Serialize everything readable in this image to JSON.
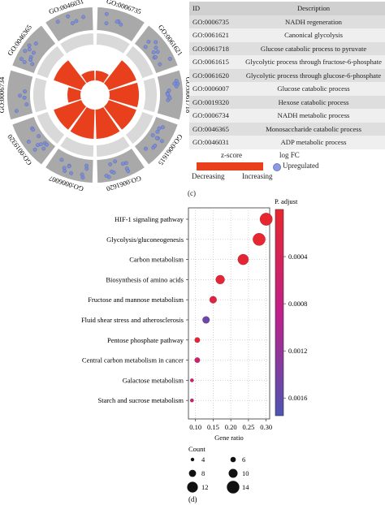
{
  "panel_c": {
    "label": "(c)",
    "table": {
      "headers": [
        "ID",
        "Description"
      ],
      "rows": [
        [
          "GO:0006735",
          "NADH regeneration"
        ],
        [
          "GO:0061621",
          "Canonical glycolysis"
        ],
        [
          "GO:0061718",
          "Glucose catabolic process to pyruvate"
        ],
        [
          "GO:0061615",
          "Glycolytic process through fructose-6-phosphate"
        ],
        [
          "GO:0061620",
          "Glycolytic process through glucose-6-phosphate"
        ],
        [
          "GO:0006007",
          "Glucose catabolic process"
        ],
        [
          "GO:0019320",
          "Hexose catabolic process"
        ],
        [
          "GO:0006734",
          "NADH metabolic process"
        ],
        [
          "GO:0046365",
          "Monosaccharide catabolic process"
        ],
        [
          "GO:0046031",
          "ADP metabolic process"
        ]
      ]
    },
    "legend": {
      "zscore_title": "z-score",
      "decreasing": "Decreasing",
      "increasing": "Increasing",
      "logfc_title": "log FC",
      "upregulated": "Upregulated"
    }
  },
  "chart_data": [
    {
      "type": "circular",
      "terms": [
        "GO:0006735",
        "GO:0061621",
        "GO:0061718",
        "GO:0061615",
        "GO:0061620",
        "GO:0006007",
        "GO:0019320",
        "GO:0006734",
        "GO:0046365",
        "GO:0046031"
      ],
      "zscore_bar_relative_height": [
        0.3,
        0.9,
        0.9,
        0.9,
        0.9,
        0.9,
        0.9,
        0.4,
        0.9,
        0.3
      ],
      "genes_per_term": [
        5,
        10,
        10,
        10,
        10,
        10,
        10,
        5,
        10,
        5
      ],
      "colors": {
        "bar": "#e8401c",
        "outer_ring": "#a9a9a9",
        "inner_ring": "#d9d9d9",
        "gene": "#7e8fd6"
      }
    },
    {
      "type": "scatter",
      "label": "(d)",
      "categories": [
        "HIF-1 signaling pathway",
        "Glycolysis/gluconeogenesis",
        "Carbon metabolism",
        "Biosynthesis of amino acids",
        "Fructose and mannose metabolism",
        "Fluid shear stress and atherosclerosis",
        "Pentose phosphate pathway",
        "Central carbon metabolism in cancer",
        "Galactose metabolism",
        "Starch and sucrose metabolism"
      ],
      "gene_ratio": [
        0.3,
        0.28,
        0.235,
        0.17,
        0.15,
        0.13,
        0.105,
        0.105,
        0.09,
        0.09
      ],
      "count": [
        14,
        14,
        12,
        10,
        8,
        8,
        6,
        6,
        4,
        4
      ],
      "p_adjust": [
        3e-05,
        5e-05,
        7e-05,
        0.0001,
        0.0002,
        0.0015,
        0.0001,
        0.0006,
        0.0006,
        0.0006
      ],
      "xlabel": "Gene ratio",
      "xticks": [
        "0.10",
        "0.15",
        "0.20",
        "0.25",
        "0.30"
      ],
      "xlim": [
        0.08,
        0.31
      ],
      "colorbar": {
        "title": "P. adjust",
        "ticks": [
          "0.0004",
          "0.0008",
          "0.0012",
          "0.0016"
        ],
        "range": [
          0.0,
          0.00175
        ],
        "low_color": "#e8262c",
        "high_color": "#4d55b4"
      },
      "size_legend": {
        "title": "Count",
        "values": [
          4,
          6,
          8,
          10,
          12,
          14
        ]
      },
      "grid": true
    }
  ]
}
